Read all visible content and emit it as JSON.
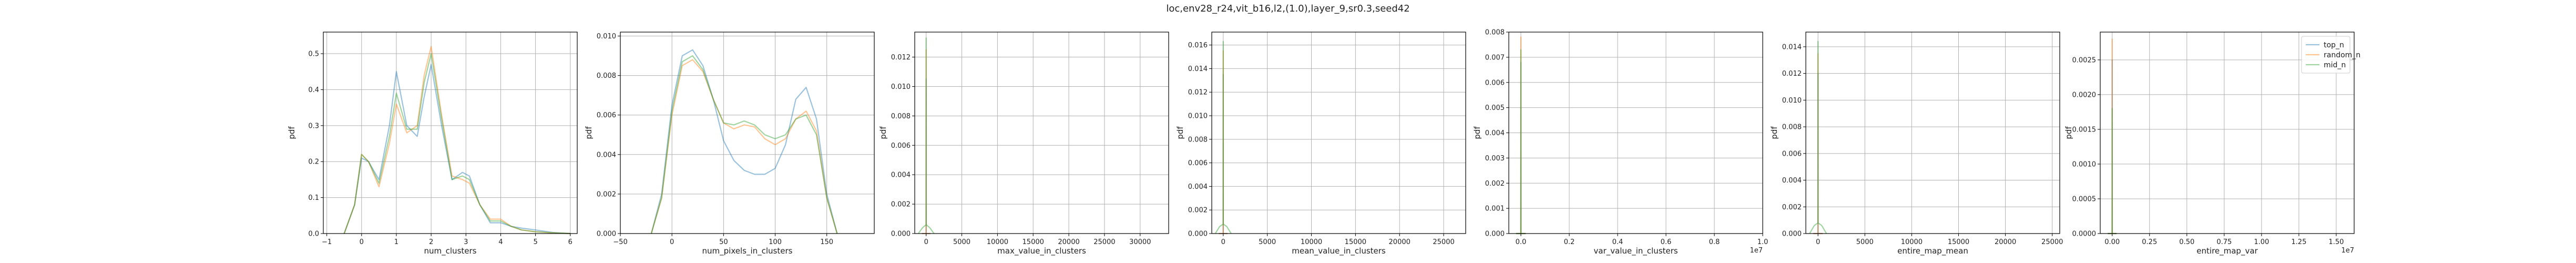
{
  "figure": {
    "suptitle": "loc,env28_r24,vit_b16,l2,(1.0),layer_9,sr0.3,seed42"
  },
  "colors": {
    "top_n": "#1f77b4",
    "random_n": "#ff7f0e",
    "mid_n": "#2ca02c",
    "alpha": 0.45
  },
  "chart_data": [
    {
      "type": "line",
      "xlabel": "num_clusters",
      "ylabel": "pdf",
      "xlim": [
        -1.1,
        6.2
      ],
      "ylim": [
        0,
        0.56
      ],
      "xticks": [
        -1,
        0,
        1,
        2,
        3,
        4,
        5,
        6
      ],
      "yticks": [
        0.0,
        0.1,
        0.2,
        0.3,
        0.4,
        0.5
      ],
      "tick_labels_y": [
        "0.0",
        "0.1",
        "0.2",
        "0.3",
        "0.4",
        "0.5"
      ],
      "offset_text": "",
      "grid": true,
      "legend": null,
      "series": [
        {
          "name": "top_n",
          "color": "#1f77b4",
          "x": [
            -0.5,
            -0.2,
            0,
            0.2,
            0.5,
            0.8,
            1,
            1.3,
            1.6,
            1.8,
            2,
            2.3,
            2.6,
            2.9,
            3.1,
            3.4,
            3.7,
            4,
            4.3,
            4.6,
            5,
            5.5,
            6
          ],
          "y": [
            0,
            0.08,
            0.21,
            0.2,
            0.15,
            0.3,
            0.45,
            0.3,
            0.27,
            0.38,
            0.47,
            0.3,
            0.15,
            0.17,
            0.16,
            0.08,
            0.03,
            0.03,
            0.02,
            0.015,
            0.01,
            0.003,
            0
          ]
        },
        {
          "name": "random_n",
          "color": "#ff7f0e",
          "x": [
            -0.5,
            -0.2,
            0,
            0.2,
            0.5,
            0.8,
            1,
            1.3,
            1.6,
            1.8,
            2,
            2.3,
            2.6,
            2.9,
            3.1,
            3.4,
            3.7,
            4,
            4.3,
            4.6,
            5,
            5.5,
            6
          ],
          "y": [
            0,
            0.08,
            0.22,
            0.2,
            0.13,
            0.25,
            0.36,
            0.28,
            0.3,
            0.44,
            0.52,
            0.33,
            0.16,
            0.15,
            0.14,
            0.08,
            0.04,
            0.04,
            0.02,
            0.01,
            0.005,
            0.002,
            0
          ]
        },
        {
          "name": "mid_n",
          "color": "#2ca02c",
          "x": [
            -0.5,
            -0.2,
            0,
            0.2,
            0.5,
            0.8,
            1,
            1.3,
            1.6,
            1.8,
            2,
            2.3,
            2.6,
            2.9,
            3.1,
            3.4,
            3.7,
            4,
            4.3,
            4.6,
            5,
            5.5,
            6
          ],
          "y": [
            0,
            0.08,
            0.22,
            0.2,
            0.14,
            0.27,
            0.39,
            0.29,
            0.29,
            0.42,
            0.5,
            0.32,
            0.15,
            0.16,
            0.15,
            0.08,
            0.035,
            0.035,
            0.02,
            0.01,
            0.005,
            0.002,
            0
          ]
        }
      ]
    },
    {
      "type": "line",
      "xlabel": "num_pixels_in_clusters",
      "ylabel": "pdf",
      "xlim": [
        -50,
        196
      ],
      "ylim": [
        0,
        0.0102
      ],
      "xticks": [
        -50,
        0,
        50,
        100,
        150
      ],
      "yticks": [
        0.0,
        0.002,
        0.004,
        0.006,
        0.008,
        0.01
      ],
      "tick_labels_y": [
        "0.000",
        "0.002",
        "0.004",
        "0.006",
        "0.008",
        "0.010"
      ],
      "offset_text": "",
      "grid": true,
      "legend": null,
      "series": [
        {
          "name": "top_n",
          "color": "#1f77b4",
          "x": [
            -20,
            -10,
            0,
            10,
            20,
            30,
            40,
            50,
            60,
            70,
            80,
            90,
            100,
            110,
            120,
            130,
            140,
            150,
            160
          ],
          "y": [
            0,
            0.002,
            0.0065,
            0.009,
            0.0093,
            0.0085,
            0.0068,
            0.0047,
            0.0037,
            0.0032,
            0.003,
            0.003,
            0.0033,
            0.0045,
            0.0068,
            0.0074,
            0.0058,
            0.002,
            0
          ]
        },
        {
          "name": "random_n",
          "color": "#ff7f0e",
          "x": [
            -20,
            -10,
            0,
            10,
            20,
            30,
            40,
            50,
            60,
            70,
            80,
            90,
            100,
            110,
            120,
            130,
            140,
            150,
            160
          ],
          "y": [
            0,
            0.0018,
            0.006,
            0.0085,
            0.0088,
            0.0082,
            0.0068,
            0.0056,
            0.0053,
            0.0055,
            0.0054,
            0.0048,
            0.0045,
            0.0048,
            0.0058,
            0.0062,
            0.0052,
            0.0018,
            0
          ]
        },
        {
          "name": "mid_n",
          "color": "#2ca02c",
          "x": [
            -20,
            -10,
            0,
            10,
            20,
            30,
            40,
            50,
            60,
            70,
            80,
            90,
            100,
            110,
            120,
            130,
            140,
            150,
            160
          ],
          "y": [
            0,
            0.0018,
            0.0062,
            0.0087,
            0.009,
            0.0083,
            0.0068,
            0.0056,
            0.0055,
            0.0057,
            0.0055,
            0.005,
            0.0048,
            0.005,
            0.0058,
            0.006,
            0.005,
            0.0018,
            0
          ]
        }
      ]
    },
    {
      "type": "line",
      "xlabel": "max_value_in_clusters",
      "ylabel": "pdf",
      "xlim": [
        -1600,
        34000
      ],
      "ylim": [
        0,
        0.0137
      ],
      "xticks": [
        0,
        5000,
        10000,
        15000,
        20000,
        25000,
        30000
      ],
      "yticks": [
        0.0,
        0.002,
        0.004,
        0.006,
        0.008,
        0.01,
        0.012
      ],
      "tick_labels_y": [
        "0.000",
        "0.002",
        "0.004",
        "0.006",
        "0.008",
        "0.010",
        "0.012"
      ],
      "offset_text": "",
      "grid": true,
      "legend": null,
      "series": [
        {
          "name": "top_n",
          "color": "#1f77b4",
          "x": [
            -600,
            -8,
            -3,
            0,
            3,
            8,
            600
          ],
          "y": [
            0,
            0,
            0.006,
            0.0105,
            0.006,
            0,
            0
          ]
        },
        {
          "name": "random_n",
          "color": "#ff7f0e",
          "x": [
            -600,
            -8,
            -3,
            0,
            3,
            8,
            600
          ],
          "y": [
            0,
            0,
            0.007,
            0.0125,
            0.007,
            0,
            0
          ]
        },
        {
          "name": "mid_n",
          "color": "#2ca02c",
          "x": [
            -1100,
            -500,
            -8,
            -3,
            0,
            3,
            8,
            500,
            1100
          ],
          "y": [
            0,
            0.0004,
            0.0006,
            0.0075,
            0.0133,
            0.0075,
            0.0006,
            0.0004,
            0
          ]
        }
      ]
    },
    {
      "type": "line",
      "xlabel": "mean_value_in_clusters",
      "ylabel": "pdf",
      "xlim": [
        -1300,
        27500
      ],
      "ylim": [
        0,
        0.0171
      ],
      "xticks": [
        0,
        5000,
        10000,
        15000,
        20000,
        25000
      ],
      "yticks": [
        0.0,
        0.002,
        0.004,
        0.006,
        0.008,
        0.01,
        0.012,
        0.014,
        0.016
      ],
      "tick_labels_y": [
        "0.000",
        "0.002",
        "0.004",
        "0.006",
        "0.008",
        "0.010",
        "0.012",
        "0.014",
        "0.016"
      ],
      "offset_text": "",
      "grid": true,
      "legend": null,
      "series": [
        {
          "name": "top_n",
          "color": "#1f77b4",
          "x": [
            -500,
            -6,
            -2,
            0,
            2,
            6,
            500
          ],
          "y": [
            0,
            0,
            0.008,
            0.0135,
            0.008,
            0,
            0
          ]
        },
        {
          "name": "random_n",
          "color": "#ff7f0e",
          "x": [
            -500,
            -6,
            -2,
            0,
            2,
            6,
            500
          ],
          "y": [
            0,
            0,
            0.009,
            0.0155,
            0.009,
            0,
            0
          ]
        },
        {
          "name": "mid_n",
          "color": "#2ca02c",
          "x": [
            -900,
            -400,
            -6,
            -2,
            0,
            2,
            6,
            400,
            900
          ],
          "y": [
            0,
            0.0006,
            0.0008,
            0.0095,
            0.0163,
            0.0095,
            0.0008,
            0.0006,
            0
          ]
        }
      ]
    },
    {
      "type": "line",
      "xlabel": "var_value_in_clusters",
      "ylabel": "pdf",
      "xlim": [
        -0.05,
        1.0
      ],
      "ylim": [
        0,
        0.008
      ],
      "xticks": [
        0.0,
        0.2,
        0.4,
        0.6,
        0.8,
        1.0
      ],
      "yticks": [
        0.0,
        0.001,
        0.002,
        0.003,
        0.004,
        0.005,
        0.006,
        0.007,
        0.008
      ],
      "tick_labels_y": [
        "0.000",
        "0.001",
        "0.002",
        "0.003",
        "0.004",
        "0.005",
        "0.006",
        "0.007",
        "0.008"
      ],
      "offset_text": "1e7",
      "grid": true,
      "legend": null,
      "series": [
        {
          "name": "top_n",
          "color": "#1f77b4",
          "x": [
            -0.02,
            -0.0003,
            -0.0001,
            0,
            0.0001,
            0.0003,
            0.02
          ],
          "y": [
            0,
            0,
            0.004,
            0.0068,
            0.004,
            0,
            0
          ]
        },
        {
          "name": "random_n",
          "color": "#ff7f0e",
          "x": [
            -0.02,
            -0.0003,
            -0.0001,
            0,
            0.0001,
            0.0003,
            0.02
          ],
          "y": [
            0,
            0,
            0.0046,
            0.0078,
            0.0046,
            0,
            0
          ]
        },
        {
          "name": "mid_n",
          "color": "#2ca02c",
          "x": [
            -0.02,
            -0.0003,
            -0.0001,
            0,
            0.0001,
            0.0003,
            0.02
          ],
          "y": [
            0,
            0,
            0.0043,
            0.0073,
            0.0043,
            0,
            0
          ]
        }
      ]
    },
    {
      "type": "line",
      "xlabel": "entire_map_mean",
      "ylabel": "pdf",
      "xlim": [
        -1300,
        25800
      ],
      "ylim": [
        0,
        0.0151
      ],
      "xticks": [
        0,
        5000,
        10000,
        15000,
        20000,
        25000
      ],
      "yticks": [
        0.0,
        0.002,
        0.004,
        0.006,
        0.008,
        0.01,
        0.012,
        0.014
      ],
      "tick_labels_y": [
        "0.000",
        "0.002",
        "0.004",
        "0.006",
        "0.008",
        "0.010",
        "0.012",
        "0.014"
      ],
      "offset_text": "",
      "grid": true,
      "legend": null,
      "series": [
        {
          "name": "top_n",
          "color": "#1f77b4",
          "x": [
            -500,
            -6,
            -2,
            0,
            2,
            6,
            500
          ],
          "y": [
            0,
            0,
            0.007,
            0.012,
            0.007,
            0,
            0
          ]
        },
        {
          "name": "random_n",
          "color": "#ff7f0e",
          "x": [
            -500,
            -6,
            -2,
            0,
            2,
            6,
            500
          ],
          "y": [
            0,
            0,
            0.008,
            0.0135,
            0.008,
            0,
            0
          ]
        },
        {
          "name": "mid_n",
          "color": "#2ca02c",
          "x": [
            -900,
            -400,
            -6,
            -2,
            0,
            2,
            6,
            400,
            900
          ],
          "y": [
            0,
            0.0006,
            0.0008,
            0.0085,
            0.0144,
            0.0085,
            0.0008,
            0.0006,
            0
          ]
        }
      ]
    },
    {
      "type": "line",
      "xlabel": "entire_map_var",
      "ylabel": "pdf",
      "xlim": [
        -0.08,
        1.62
      ],
      "ylim": [
        0,
        0.0029
      ],
      "xticks": [
        0.0,
        0.25,
        0.5,
        0.75,
        1.0,
        1.25,
        1.5
      ],
      "yticks": [
        0.0,
        0.0005,
        0.001,
        0.0015,
        0.002,
        0.0025
      ],
      "tick_labels_y": [
        "0.0000",
        "0.0005",
        "0.0010",
        "0.0015",
        "0.0020",
        "0.0025"
      ],
      "offset_text": "1e7",
      "grid": true,
      "legend": {
        "placement": "top-right",
        "entries": [
          "top_n",
          "random_n",
          "mid_n"
        ]
      },
      "series": [
        {
          "name": "top_n",
          "color": "#1f77b4",
          "x": [
            -0.03,
            -0.0006,
            -0.0002,
            0,
            0.0002,
            0.0006,
            0.03
          ],
          "y": [
            0,
            0,
            0.0015,
            0.0025,
            0.0015,
            0,
            0
          ]
        },
        {
          "name": "random_n",
          "color": "#ff7f0e",
          "x": [
            -0.03,
            -0.0006,
            -0.0002,
            0,
            0.0002,
            0.0006,
            0.03
          ],
          "y": [
            0,
            0,
            0.0017,
            0.0028,
            0.0017,
            0,
            0
          ]
        },
        {
          "name": "mid_n",
          "color": "#2ca02c",
          "x": [
            -0.03,
            -0.0006,
            -0.0002,
            0,
            0.0002,
            0.0006,
            0.03
          ],
          "y": [
            0,
            0,
            0.0011,
            0.0018,
            0.0011,
            0,
            0
          ]
        }
      ]
    }
  ]
}
